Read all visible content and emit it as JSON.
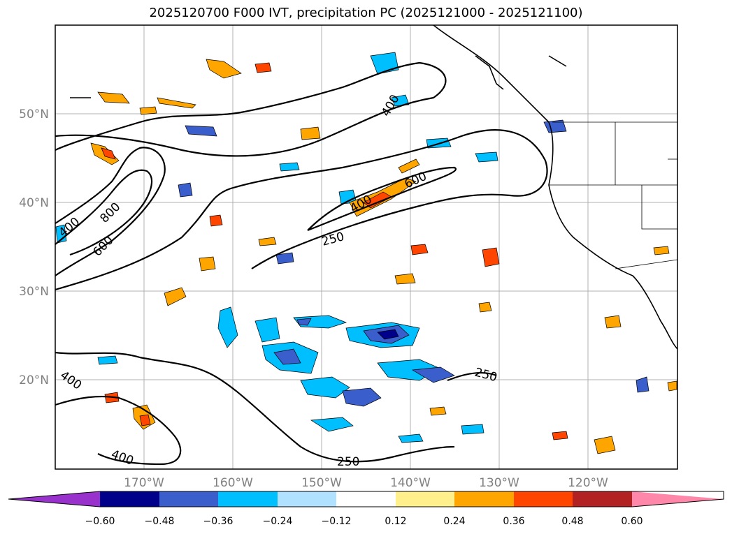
{
  "title": "2025120700 F000 IVT, precipitation PC (2025121000 - 2025121100)",
  "map": {
    "lat_ticks": [
      "50°N",
      "40°N",
      "30°N",
      "20°N"
    ],
    "lon_ticks": [
      "170°W",
      "160°W",
      "150°W",
      "140°W",
      "130°W",
      "120°W"
    ],
    "land_color": "#ffffff",
    "grid_color": "#b0b0b0",
    "contour_labels": [
      "400",
      "800",
      "600",
      "400",
      "600",
      "250",
      "400",
      "250",
      "400",
      "400",
      "250"
    ]
  },
  "colorbar": {
    "tick_labels": [
      "−0.60",
      "−0.48",
      "−0.36",
      "−0.24",
      "−0.12",
      "0.12",
      "0.24",
      "0.36",
      "0.48",
      "0.60"
    ],
    "colors": [
      "#9932cc",
      "#00008b",
      "#3a5fcd",
      "#00bfff",
      "#b0e2ff",
      "#ffffff",
      "#fff08c",
      "#ffa500",
      "#ff4500",
      "#b22222",
      "#ff88aa"
    ]
  }
}
